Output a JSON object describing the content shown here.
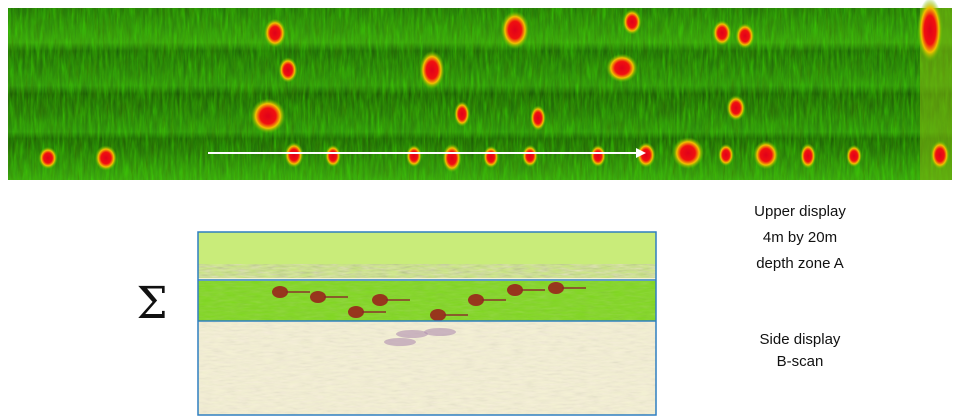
{
  "annotations": {
    "sigma": "Σ",
    "upper_display": [
      "Upper display",
      "4m by 20m",
      "depth zone A"
    ],
    "side_display": [
      "Side display",
      "B-scan"
    ]
  }
}
